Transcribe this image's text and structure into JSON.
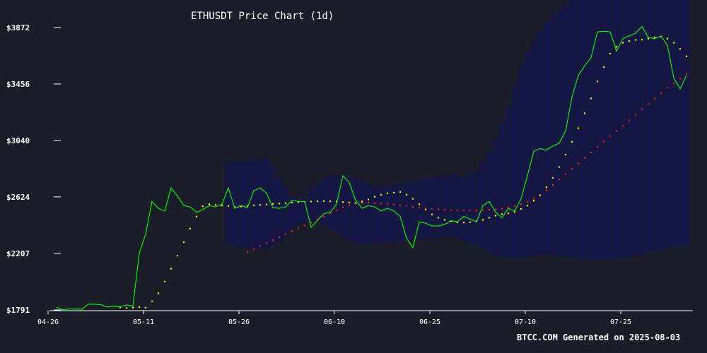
{
  "chart_data": {
    "type": "line",
    "title": "ETHUSDT Price Chart (1d)",
    "footer": "BTCC.COM Generated on 2025-08-03",
    "ylim": [
      1791,
      3872
    ],
    "yticks": [
      "$3872",
      "$3456",
      "$3040",
      "$2624",
      "$2207",
      "$1791"
    ],
    "ytick_values": [
      3872,
      3456,
      3040,
      2624,
      2207,
      1791
    ],
    "xticks": [
      "04-26",
      "05-11",
      "05-26",
      "06-10",
      "06-25",
      "07-10",
      "07-25"
    ],
    "xtick_index": [
      0,
      15,
      30,
      45,
      60,
      75,
      90
    ],
    "grid": false,
    "colors": {
      "background": "#1b1e29",
      "price": "#00ff00",
      "ma20": "#ffff00",
      "ma50": "#ff2020",
      "bands": "#0000a0",
      "axis": "#ffffff"
    },
    "series": [
      {
        "name": "Price",
        "start": 0,
        "values": [
          1810,
          1793,
          1798,
          1798,
          1796,
          1834,
          1833,
          1830,
          1812,
          1818,
          1815,
          1828,
          1820,
          2210,
          2350,
          2590,
          2540,
          2520,
          2690,
          2630,
          2560,
          2550,
          2510,
          2530,
          2560,
          2550,
          2570,
          2690,
          2540,
          2560,
          2545,
          2670,
          2690,
          2650,
          2545,
          2540,
          2550,
          2600,
          2590,
          2590,
          2400,
          2450,
          2500,
          2510,
          2570,
          2780,
          2730,
          2600,
          2540,
          2560,
          2550,
          2520,
          2540,
          2520,
          2480,
          2320,
          2250,
          2440,
          2430,
          2410,
          2410,
          2420,
          2450,
          2440,
          2480,
          2460,
          2440,
          2560,
          2590,
          2510,
          2470,
          2540,
          2520,
          2610,
          2780,
          2960,
          2980,
          2970,
          3000,
          3020,
          3110,
          3360,
          3520,
          3590,
          3650,
          3840,
          3845,
          3840,
          3700,
          3790,
          3810,
          3830,
          3880,
          3800,
          3790,
          3810,
          3740,
          3500,
          3420,
          3520
        ]
      },
      {
        "name": "MA20",
        "start": 10,
        "values": [
          1810,
          1805,
          1808,
          1812,
          1808,
          1855,
          1915,
          2000,
          2095,
          2190,
          2290,
          2390,
          2480,
          2555,
          2570,
          2565,
          2560,
          2556,
          2550,
          2553,
          2558,
          2562,
          2565,
          2568,
          2572,
          2575,
          2578,
          2582,
          2585,
          2588,
          2590,
          2592,
          2593,
          2592,
          2590,
          2585,
          2582,
          2578,
          2590,
          2605,
          2625,
          2640,
          2650,
          2655,
          2660,
          2640,
          2610,
          2570,
          2530,
          2495,
          2470,
          2455,
          2445,
          2437,
          2435,
          2438,
          2445,
          2455,
          2470,
          2485,
          2497,
          2503,
          2513,
          2535,
          2560,
          2595,
          2635,
          2695,
          2765,
          2845,
          2935,
          3030,
          3130,
          3240,
          3350,
          3475,
          3580,
          3680,
          3730,
          3760,
          3772,
          3780,
          3782,
          3790,
          3800,
          3805,
          3790,
          3760,
          3715,
          3660
        ]
      },
      {
        "name": "MA50",
        "start": 30,
        "values": [
          2220,
          2240,
          2262,
          2283,
          2305,
          2327,
          2349,
          2371,
          2393,
          2414,
          2436,
          2458,
          2480,
          2502,
          2524,
          2547,
          2563,
          2575,
          2580,
          2580,
          2578,
          2575,
          2572,
          2568,
          2563,
          2557,
          2551,
          2545,
          2540,
          2536,
          2532,
          2529,
          2527,
          2526,
          2525,
          2524,
          2524,
          2526,
          2529,
          2532,
          2537,
          2545,
          2556,
          2570,
          2588,
          2610,
          2638,
          2672,
          2712,
          2752,
          2792,
          2832,
          2872,
          2912,
          2952,
          2992,
          3032,
          3072,
          3110,
          3148,
          3188,
          3228,
          3268,
          3308,
          3348,
          3388,
          3428,
          3462,
          3496,
          3530
        ]
      }
    ],
    "bands": {
      "name": "Bollinger Bands",
      "start": 27,
      "upper": [
        2880,
        2880,
        2890,
        2895,
        2900,
        2905,
        2910,
        2850,
        2760,
        2700,
        2630,
        2610,
        2620,
        2680,
        2720,
        2760,
        2780,
        2790,
        2780,
        2770,
        2760,
        2740,
        2720,
        2700,
        2700,
        2705,
        2710,
        2720,
        2730,
        2740,
        2750,
        2760,
        2770,
        2780,
        2790,
        2790,
        2780,
        2770,
        2790,
        2820,
        2880,
        2960,
        3060,
        3170,
        3300,
        3450,
        3600,
        3700,
        3780,
        3850,
        3910,
        3960,
        4000,
        4040,
        4070,
        4100,
        4120,
        4130,
        4135,
        4140,
        4145,
        4148,
        4150,
        4152,
        4155,
        4158,
        4160,
        4160,
        4158,
        4155,
        4150,
        4145,
        4140
      ],
      "lower": [
        2270,
        2260,
        2250,
        2245,
        2240,
        2238,
        2238,
        2260,
        2290,
        2330,
        2380,
        2420,
        2430,
        2440,
        2440,
        2420,
        2390,
        2360,
        2330,
        2300,
        2280,
        2270,
        2270,
        2275,
        2280,
        2285,
        2290,
        2295,
        2300,
        2305,
        2310,
        2315,
        2320,
        2325,
        2330,
        2330,
        2320,
        2300,
        2280,
        2260,
        2240,
        2220,
        2200,
        2180,
        2170,
        2170,
        2170,
        2180,
        2190,
        2200,
        2200,
        2200,
        2190,
        2180,
        2175,
        2170,
        2165,
        2160,
        2160,
        2160,
        2165,
        2170,
        2175,
        2180,
        2190,
        2200,
        2210,
        2220,
        2230,
        2240,
        2250,
        2260,
        2270
      ]
    }
  }
}
